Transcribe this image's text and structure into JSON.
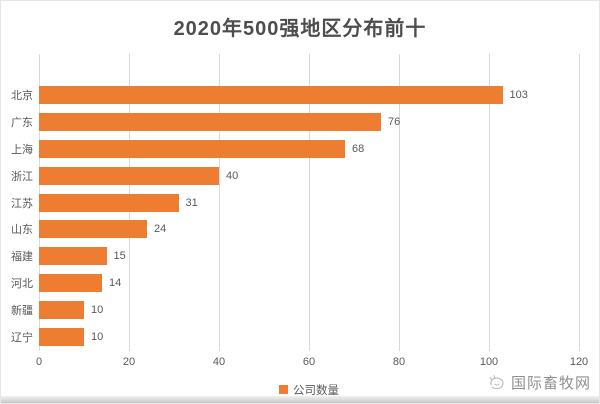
{
  "title": "2020年500强地区分布前十",
  "chart_data": {
    "type": "bar",
    "orientation": "horizontal",
    "title": "2020年500强地区分布前十",
    "categories": [
      "北京",
      "广东",
      "上海",
      "浙江",
      "江苏",
      "山东",
      "福建",
      "河北",
      "新疆",
      "辽宁"
    ],
    "values": [
      103,
      76,
      68,
      40,
      31,
      24,
      15,
      14,
      10,
      10
    ],
    "series_name": "公司数量",
    "xlim": [
      0,
      120
    ],
    "x_ticks": [
      0,
      20,
      40,
      60,
      80,
      100,
      120
    ],
    "grid": true,
    "value_labels": true,
    "legend_position": "bottom-center",
    "bar_color": "#ED7D31"
  },
  "legend": {
    "label": "公司数量",
    "swatch_color": "#ED7D31"
  },
  "watermark": {
    "text": "国际畜牧网",
    "icon": "sketch-animal-logo"
  },
  "colors": {
    "bar": "#ED7D31",
    "title_text": "#4d4d4d",
    "axis_text": "#595959",
    "gridline": "#d9d9d9",
    "watermark_text": "#8f8f8f",
    "background": "#ffffff"
  }
}
